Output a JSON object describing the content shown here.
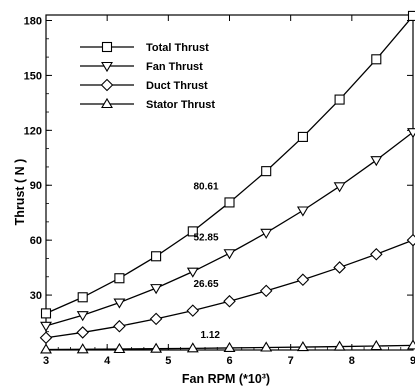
{
  "chart_data": {
    "type": "line",
    "xlabel": "Fan RPM (*10³)",
    "ylabel": "Thrust ( N )",
    "xlim": [
      3,
      9
    ],
    "ylim": [
      0,
      183
    ],
    "xticks": [
      3,
      4,
      5,
      6,
      7,
      8,
      9
    ],
    "yticks": [
      30,
      60,
      90,
      120,
      150,
      180
    ],
    "grid": false,
    "legend_position": "top-left",
    "x": [
      3,
      3.6,
      4.2,
      4.8,
      5.4,
      6,
      6.6,
      7.2,
      7.8,
      8.4,
      9
    ],
    "series": [
      {
        "name": "Total Thrust",
        "marker": "square",
        "values": [
          20.0,
          28.8,
          39.2,
          51.2,
          64.8,
          80.61,
          97.7,
          116.4,
          136.8,
          158.8,
          182.5
        ]
      },
      {
        "name": "Fan Thrust",
        "marker": "triangle-down",
        "values": [
          13.2,
          19.0,
          25.9,
          33.8,
          42.8,
          52.85,
          64.0,
          76.2,
          89.4,
          103.7,
          119.0
        ]
      },
      {
        "name": "Duct Thrust",
        "marker": "diamond",
        "values": [
          6.7,
          9.6,
          13.0,
          17.0,
          21.5,
          26.65,
          32.3,
          38.4,
          45.1,
          52.3,
          60.0
        ]
      },
      {
        "name": "Stator Thrust",
        "marker": "triangle-up",
        "values": [
          0.28,
          0.4,
          0.55,
          0.71,
          0.9,
          1.12,
          1.36,
          1.61,
          1.89,
          2.19,
          2.52
        ]
      }
    ],
    "annotations": [
      {
        "text": "80.61",
        "x": 6,
        "series": "Total Thrust"
      },
      {
        "text": "52.85",
        "x": 6,
        "series": "Fan Thrust"
      },
      {
        "text": "26.65",
        "x": 6,
        "series": "Duct Thrust"
      },
      {
        "text": "1.12",
        "x": 6,
        "series": "Stator Thrust"
      }
    ]
  }
}
